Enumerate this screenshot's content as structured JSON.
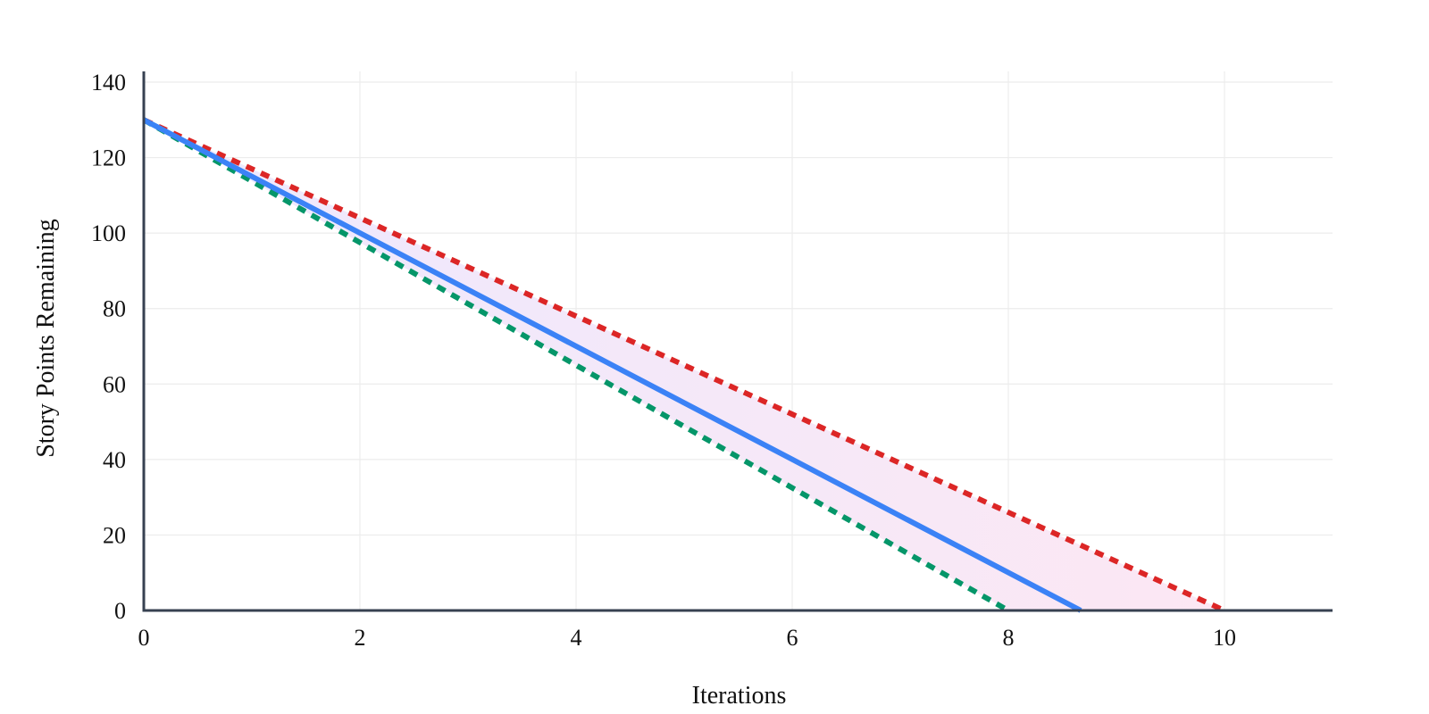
{
  "chart_data": {
    "type": "line",
    "title": "",
    "xlabel": "Iterations",
    "ylabel": "Story Points Remaining",
    "xlim": [
      0,
      11
    ],
    "ylim": [
      0,
      140
    ],
    "x_ticks": [
      "0",
      "2",
      "4",
      "6",
      "8",
      "10"
    ],
    "y_ticks": [
      "0",
      "20",
      "40",
      "60",
      "80",
      "100",
      "120",
      "140"
    ],
    "grid": true,
    "legend": "none",
    "band": {
      "description": "shaded region between the slow and fast projection lines",
      "gradient_start_color": "#ede9fe",
      "gradient_end_color": "#fce7f3"
    },
    "series": [
      {
        "style": "dotted",
        "color": "#dc2626",
        "x": [
          0,
          10
        ],
        "y": [
          130,
          0
        ]
      },
      {
        "style": "solid",
        "color": "#3b82f6",
        "x": [
          0,
          8.67
        ],
        "y": [
          130,
          0
        ]
      },
      {
        "style": "dotted",
        "color": "#059669",
        "x": [
          0,
          8
        ],
        "y": [
          130,
          0
        ]
      }
    ],
    "axis_color": "#374151"
  }
}
